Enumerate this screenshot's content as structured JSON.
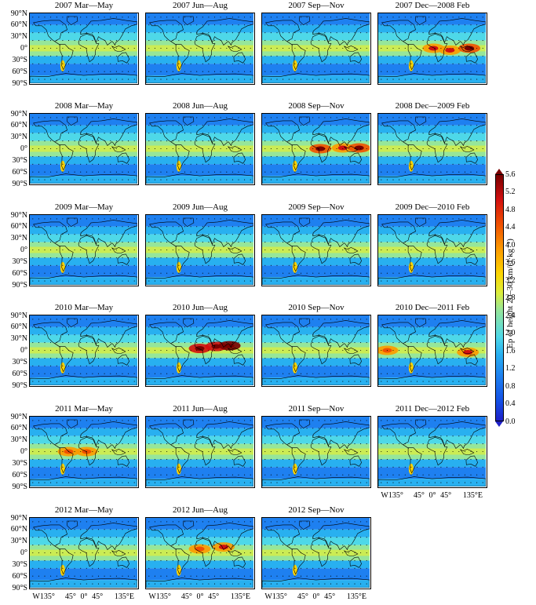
{
  "figure": {
    "panels": [
      {
        "title": "2007 Mar—May",
        "hotspots": []
      },
      {
        "title": "2007 Jun—Aug",
        "hotspots": []
      },
      {
        "title": "2007 Sep—Nov",
        "hotspots": []
      },
      {
        "title": "2007 Dec—2008 Feb",
        "hotspots": [
          {
            "lon": 5,
            "lat": 0,
            "level": 4.4
          },
          {
            "lon": 60,
            "lat": -5,
            "level": 4.4
          },
          {
            "lon": 125,
            "lat": 0,
            "level": 4.8
          }
        ]
      },
      {
        "title": "2008 Mar—May",
        "hotspots": []
      },
      {
        "title": "2008 Jun—Aug",
        "hotspots": []
      },
      {
        "title": "2008 Sep—Nov",
        "hotspots": [
          {
            "lon": 15,
            "lat": 0,
            "level": 4.8
          },
          {
            "lon": 90,
            "lat": 2,
            "level": 4.4
          },
          {
            "lon": 145,
            "lat": 2,
            "level": 4.8
          }
        ]
      },
      {
        "title": "2008 Dec—2009 Feb",
        "hotspots": []
      },
      {
        "title": "2009 Mar—May",
        "hotspots": []
      },
      {
        "title": "2009 Jun—Aug",
        "hotspots": []
      },
      {
        "title": "2009 Sep—Nov",
        "hotspots": []
      },
      {
        "title": "2009 Dec—2010 Feb",
        "hotspots": []
      },
      {
        "title": "2010 Mar—May",
        "hotspots": []
      },
      {
        "title": "2010 Jun—Aug",
        "hotspots": [
          {
            "lon": 0,
            "lat": 5,
            "level": 5.2
          },
          {
            "lon": 55,
            "lat": 10,
            "level": 5.2
          },
          {
            "lon": 100,
            "lat": 12,
            "level": 5.6
          }
        ]
      },
      {
        "title": "2010 Sep—Nov",
        "hotspots": []
      },
      {
        "title": "2010 Dec—2011 Feb",
        "hotspots": [
          {
            "lon": -150,
            "lat": 0,
            "level": 4.0
          },
          {
            "lon": 120,
            "lat": -5,
            "level": 4.4
          }
        ]
      },
      {
        "title": "2011 Mar—May",
        "hotspots": [
          {
            "lon": -50,
            "lat": 0,
            "level": 4.0
          },
          {
            "lon": 10,
            "lat": 0,
            "level": 4.0
          }
        ]
      },
      {
        "title": "2011 Jun—Aug",
        "hotspots": []
      },
      {
        "title": "2011 Sep—Nov",
        "hotspots": []
      },
      {
        "title": "2011 Dec—2012 Feb",
        "hotspots": []
      },
      {
        "title": "2012 Mar—May",
        "hotspots": []
      },
      {
        "title": "2012 Jun—Aug",
        "hotspots": [
          {
            "lon": 0,
            "lat": 10,
            "level": 4.0
          },
          {
            "lon": 80,
            "lat": 15,
            "level": 4.4
          }
        ]
      },
      {
        "title": "2012 Sep—Nov",
        "hotspots": []
      }
    ],
    "lat_ticks": [
      "90°N",
      "60°N",
      "30°N",
      "0°",
      "30°S",
      "60°S",
      "90°S"
    ],
    "lon_ticks": [
      "W135°",
      "45°",
      "0°",
      "45°",
      "135°E"
    ],
    "lon_tick_values": [
      -135,
      -45,
      0,
      45,
      135
    ],
    "colorbar": {
      "min": 0.0,
      "max": 5.6,
      "ticks": [
        "0.0",
        "0.4",
        "0.8",
        "1.2",
        "1.6",
        "2.0",
        "2.4",
        "2.8",
        "3.2",
        "3.6",
        "4.0",
        "4.4",
        "4.8",
        "5.2",
        "5.6"
      ],
      "label": "Ep of height 20–30 km/(J·kg⁻¹)",
      "colors": {
        "low": "#1e20c8",
        "mid_low": "#28b0f0",
        "mid": "#96e69a",
        "mid_high": "#fcd400",
        "high": "#f05000",
        "max": "#7a0000"
      }
    }
  }
}
